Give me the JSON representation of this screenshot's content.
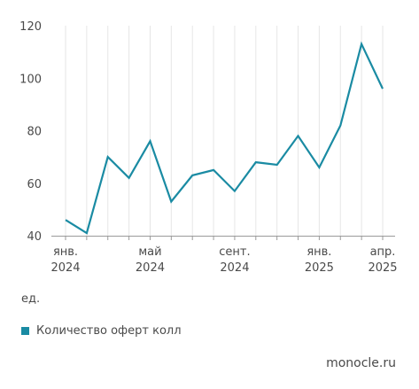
{
  "chart_data": {
    "type": "line",
    "x": [
      "2024-01",
      "2024-02",
      "2024-03",
      "2024-04",
      "2024-05",
      "2024-06",
      "2024-07",
      "2024-08",
      "2024-09",
      "2024-10",
      "2024-11",
      "2024-12",
      "2025-01",
      "2025-02",
      "2025-03",
      "2025-04"
    ],
    "x_tick_labels": [
      {
        "index": 0,
        "lines": [
          "янв.",
          "2024"
        ]
      },
      {
        "index": 4,
        "lines": [
          "май",
          "2024"
        ]
      },
      {
        "index": 8,
        "lines": [
          "сент.",
          "2024"
        ]
      },
      {
        "index": 12,
        "lines": [
          "янв.",
          "2025"
        ]
      },
      {
        "index": 15,
        "lines": [
          "апр.",
          "2025"
        ]
      }
    ],
    "y_ticks": [
      40,
      60,
      80,
      100,
      120
    ],
    "ylim": [
      40,
      120
    ],
    "ylabel": "ед.",
    "series": [
      {
        "name": "Количество оферт колл",
        "color": "#1a8ba3",
        "values": [
          46,
          41,
          70,
          62,
          76,
          53,
          63,
          65,
          57,
          68,
          67,
          78,
          66,
          82,
          113,
          96
        ]
      }
    ],
    "grid": "vertical",
    "legend_position": "bottom-left"
  },
  "source": "monocle.ru"
}
